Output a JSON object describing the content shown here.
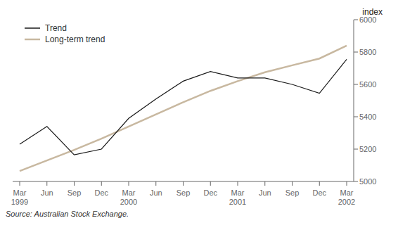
{
  "chart_data": {
    "type": "line",
    "ylabel": "index",
    "annotations": [
      "Source: Australian Stock Exchange."
    ],
    "categories": [
      "Mar\n1999",
      "Jun",
      "Sep",
      "Dec",
      "Mar\n2000",
      "Jun",
      "Sep",
      "Dec",
      "Mar\n2001",
      "Jun",
      "Sep",
      "Dec",
      "Mar\n2002"
    ],
    "series": [
      {
        "name": "Trend",
        "color": "#1a1a1a",
        "values": [
          5230,
          5340,
          5165,
          5200,
          5390,
          5510,
          5620,
          5680,
          5640,
          5640,
          5600,
          5545,
          5755
        ]
      },
      {
        "name": "Long-term trend",
        "color": "#c8b8a0",
        "values": [
          5065,
          5130,
          5195,
          5265,
          5340,
          5415,
          5490,
          5560,
          5620,
          5675,
          5718,
          5760,
          5840
        ]
      }
    ],
    "ylim": [
      5000,
      6000
    ],
    "yticks": [
      5000,
      5200,
      5400,
      5600,
      5800,
      6000
    ],
    "grid": false,
    "legend": "upper left"
  }
}
